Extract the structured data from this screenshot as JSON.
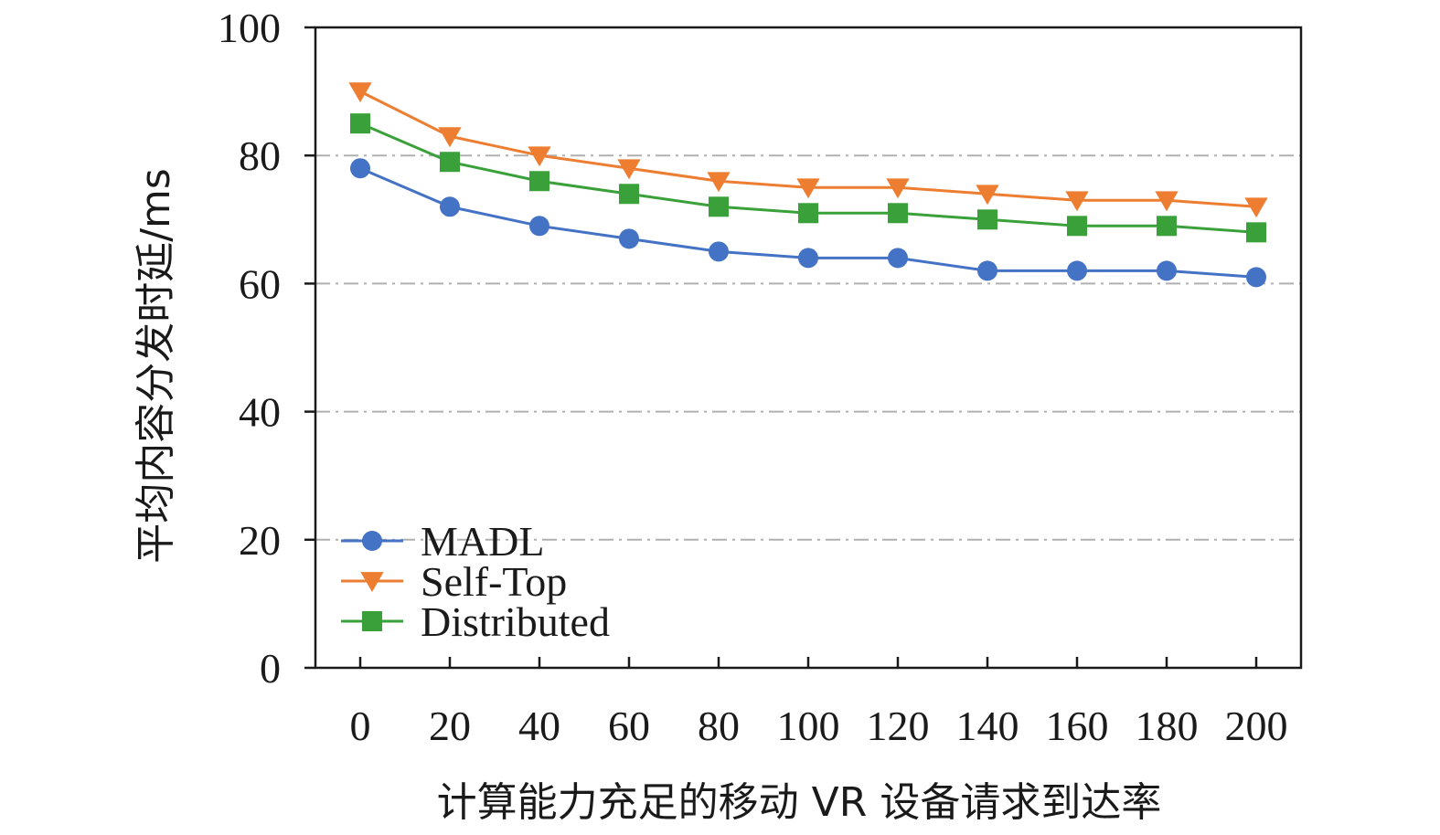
{
  "chart_data": {
    "type": "line",
    "x": [
      0,
      20,
      40,
      60,
      80,
      100,
      120,
      140,
      160,
      180,
      200
    ],
    "x_tick_labels": [
      "0",
      "20",
      "40",
      "60",
      "80",
      "100",
      "120",
      "140",
      "160",
      "180",
      "200"
    ],
    "y_tick_labels": [
      "0",
      "20",
      "40",
      "60",
      "80",
      "100"
    ],
    "y_ticks": [
      0,
      20,
      40,
      60,
      80,
      100
    ],
    "xlabel": "计算能力充足的移动 VR 设备请求到达率",
    "ylabel": "平均内容分发时延/ms",
    "ylim": [
      0,
      100
    ],
    "xlim": [
      -10,
      210
    ],
    "grid": "horizontal dash-dot",
    "legend_position": "lower-left",
    "series": [
      {
        "name": "MADL",
        "marker": "circle",
        "color": "#4472c4",
        "values": [
          78,
          72,
          69,
          67,
          65,
          64,
          64,
          62,
          62,
          62,
          61
        ]
      },
      {
        "name": "Self-Top",
        "marker": "triangle-down",
        "color": "#ed7d31",
        "values": [
          90,
          83,
          80,
          78,
          76,
          75,
          75,
          74,
          73,
          73,
          72
        ]
      },
      {
        "name": "Distributed",
        "marker": "square",
        "color": "#3aa13a",
        "values": [
          85,
          79,
          76,
          74,
          72,
          71,
          71,
          70,
          69,
          69,
          68
        ]
      }
    ]
  }
}
